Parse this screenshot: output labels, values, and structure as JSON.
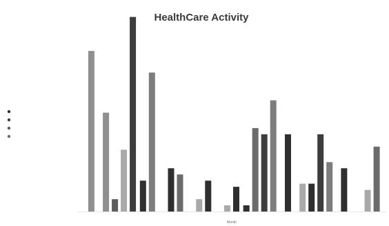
{
  "chart_data": {
    "type": "bar",
    "title": "HealthCare Activity",
    "xlabel": "Month",
    "ylabel": "",
    "grid": false,
    "legend_position": "left",
    "categories": [
      "",
      "",
      "",
      "",
      "",
      "",
      "",
      "",
      "",
      "",
      ""
    ],
    "ylim": [
      0,
      6
    ],
    "yticks": [
      0,
      1,
      2,
      3,
      4,
      5,
      6
    ],
    "ytick_labels": [
      "",
      "",
      "",
      "",
      "",
      "",
      ""
    ],
    "series": [
      {
        "name": "",
        "color": "#8f8f8f",
        "values": [
          5.2,
          3.2,
          0,
          0,
          0,
          0,
          0,
          0,
          0,
          0,
          0
        ]
      },
      {
        "name": "",
        "color": "#5c5c5c",
        "values": [
          0,
          0.4,
          0,
          0,
          0,
          0,
          0,
          0,
          0,
          0,
          0
        ]
      },
      {
        "name": "",
        "color": "#a9a9a9",
        "values": [
          0,
          2.0,
          0,
          0,
          0.4,
          0.2,
          0,
          0,
          0.9,
          0,
          0.7
        ]
      },
      {
        "name": "",
        "color": "#2f2f2f",
        "values": [
          0,
          0,
          1.0,
          1.4,
          1.0,
          0.8,
          0.2,
          2.5,
          0.9,
          1.4,
          0
        ]
      },
      {
        "name": "",
        "color": "#6b6b6b",
        "values": [
          0,
          0,
          0,
          1.2,
          0,
          0,
          2.7,
          0,
          0,
          0,
          2.1
        ]
      },
      {
        "name": "",
        "color": "#3d3d3d",
        "values": [
          0,
          6.3,
          0,
          0,
          0,
          0,
          2.5,
          0,
          2.5,
          0,
          0
        ]
      },
      {
        "name": "",
        "color": "#7d7d7d",
        "values": [
          0,
          0,
          4.5,
          0,
          0,
          0,
          3.6,
          0,
          1.6,
          0,
          0
        ]
      }
    ]
  }
}
